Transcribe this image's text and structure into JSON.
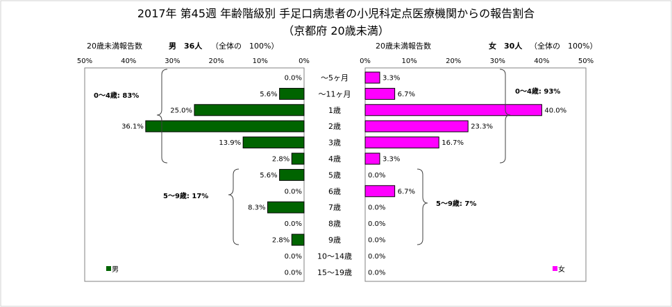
{
  "title": {
    "line1": "2017年 第45週 年齢階級別 手足口病患者の小児科定点医療機関からの報告割合",
    "line2": "（京都府 20歳未満）"
  },
  "chart_data": {
    "type": "bar",
    "orientation": "horizontal",
    "layout": "population-pyramid",
    "categories": [
      "～5ヶ月",
      "～11ヶ月",
      "1歳",
      "2歳",
      "3歳",
      "4歳",
      "5歳",
      "6歳",
      "7歳",
      "8歳",
      "9歳",
      "10～14歳",
      "15～19歳"
    ],
    "xlim": [
      0,
      50
    ],
    "xticks": [
      "50%",
      "40%",
      "30%",
      "20%",
      "10%",
      "0%"
    ],
    "xticks_right": [
      "0%",
      "10%",
      "20%",
      "30%",
      "40%",
      "50%"
    ],
    "series": [
      {
        "name": "男",
        "side": "left",
        "header": "20歳未満報告数",
        "count_label": "男　36人",
        "total_label": "（全体の　100%）",
        "color": "#006400",
        "values": [
          0.0,
          5.6,
          25.0,
          36.1,
          13.9,
          2.8,
          5.6,
          0.0,
          8.3,
          0.0,
          2.8,
          0.0,
          0.0
        ],
        "labels": [
          "0.0%",
          "5.6%",
          "25.0%",
          "36.1%",
          "13.9%",
          "2.8%",
          "5.6%",
          "0.0%",
          "8.3%",
          "0.0%",
          "2.8%",
          "0.0%",
          "0.0%"
        ],
        "group_labels": [
          "0～4歳: 83%",
          "5～9歳: 17%"
        ],
        "legend": "男"
      },
      {
        "name": "女",
        "side": "right",
        "header": "20歳未満報告数",
        "count_label": "女　30人",
        "total_label": "（全体の　100%）",
        "color": "#ff00ff",
        "values": [
          3.3,
          6.7,
          40.0,
          23.3,
          16.7,
          3.3,
          0.0,
          6.7,
          0.0,
          0.0,
          0.0,
          0.0,
          0.0
        ],
        "labels": [
          "3.3%",
          "6.7%",
          "40.0%",
          "23.3%",
          "16.7%",
          "3.3%",
          "0.0%",
          "6.7%",
          "0.0%",
          "0.0%",
          "0.0%",
          "0.0%",
          "0.0%"
        ],
        "group_labels": [
          "0～4歳: 93%",
          "5～9歳: 7%"
        ],
        "legend": "女"
      }
    ],
    "grid": false,
    "legend_position": "bottom-left / bottom-right"
  }
}
